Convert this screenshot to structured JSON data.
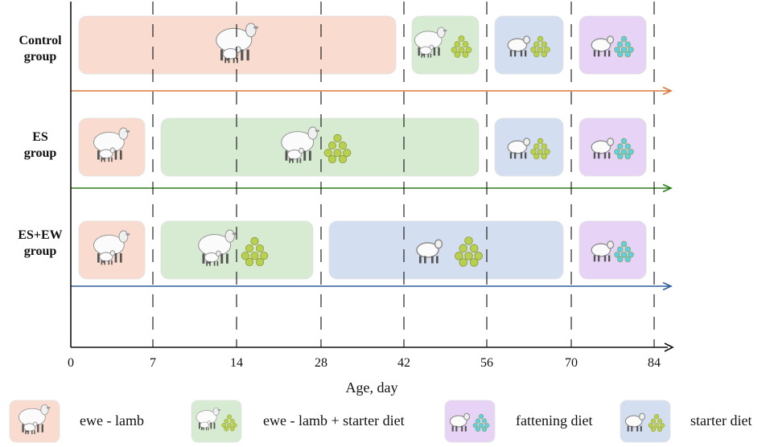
{
  "groups": [
    {
      "line1": "Control",
      "line2": "group",
      "arrow_color": "#d77a3c",
      "phases": [
        {
          "type": "ewe_lamb",
          "start_day": 0,
          "end_day": 42
        },
        {
          "type": "ewe_lamb_starter",
          "start_day": 42,
          "end_day": 56
        },
        {
          "type": "starter",
          "start_day": 56,
          "end_day": 70
        },
        {
          "type": "fattening",
          "start_day": 70,
          "end_day": 84
        }
      ]
    },
    {
      "line1": "ES",
      "line2": "group",
      "arrow_color": "#2e7d1f",
      "phases": [
        {
          "type": "ewe_lamb",
          "start_day": 0,
          "end_day": 7
        },
        {
          "type": "ewe_lamb_starter",
          "start_day": 7,
          "end_day": 56
        },
        {
          "type": "starter",
          "start_day": 56,
          "end_day": 70
        },
        {
          "type": "fattening",
          "start_day": 70,
          "end_day": 84
        }
      ]
    },
    {
      "line1": "ES+EW",
      "line2": "group",
      "arrow_color": "#2f5f9a",
      "phases": [
        {
          "type": "ewe_lamb",
          "start_day": 0,
          "end_day": 7
        },
        {
          "type": "ewe_lamb_starter",
          "start_day": 7,
          "end_day": 28
        },
        {
          "type": "starter",
          "start_day": 28,
          "end_day": 70
        },
        {
          "type": "fattening",
          "start_day": 70,
          "end_day": 84
        }
      ]
    }
  ],
  "axis": {
    "title": "Age, day",
    "ticks": [
      0,
      7,
      14,
      28,
      42,
      56,
      70,
      84
    ],
    "tick_labels": [
      "0",
      "7",
      "14",
      "28",
      "42",
      "56",
      "70",
      "84"
    ]
  },
  "legend": [
    {
      "type": "ewe_lamb",
      "label": "ewe - lamb"
    },
    {
      "type": "ewe_lamb_starter",
      "label": "ewe - lamb + starter diet"
    },
    {
      "type": "fattening",
      "label": "fattening diet"
    },
    {
      "type": "starter",
      "label": "starter diet"
    }
  ],
  "colors": {
    "ewe_lamb": "#f9dccf",
    "ewe_lamb_starter": "#d6ebd1",
    "starter": "#d3dff0",
    "fattening": "#e6d3f5",
    "starter_pellet": "#b9cf4f",
    "fattening_pellet": "#5fd0e0"
  }
}
